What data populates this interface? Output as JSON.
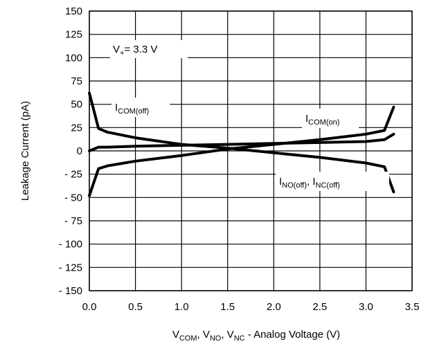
{
  "chart_data": {
    "type": "line",
    "title": "",
    "xlabel_parts": [
      {
        "text": "V"
      },
      {
        "text": "COM",
        "sub": true
      },
      {
        "text": ", V"
      },
      {
        "text": "NO",
        "sub": true
      },
      {
        "text": ", V"
      },
      {
        "text": "NC",
        "sub": true
      },
      {
        "text": " -  Analog Voltage (V)"
      }
    ],
    "ylabel": "Leakage Current  (pA)",
    "xlim": [
      0,
      3.5
    ],
    "ylim": [
      -150,
      150
    ],
    "grid": true,
    "xticks": [
      0,
      0.5,
      1.0,
      1.5,
      2.0,
      2.5,
      3.0,
      3.5
    ],
    "xtick_labels": [
      "0.0",
      "0.5",
      "1.0",
      "1.5",
      "2.0",
      "2.5",
      "3.0",
      "3.5"
    ],
    "yticks": [
      150,
      125,
      100,
      75,
      50,
      25,
      0,
      -25,
      -50,
      -75,
      -100,
      -125,
      -150
    ],
    "ytick_labels": [
      "150",
      "125",
      "100",
      "75",
      "50",
      "25",
      "0",
      "- 25",
      "- 50",
      "- 75",
      "- 100",
      "- 125",
      "- 150"
    ],
    "series": [
      {
        "id": "icom-off",
        "x": [
          0.0,
          0.1,
          0.2,
          0.5,
          1.0,
          1.5,
          2.0,
          2.5,
          3.0,
          3.2,
          3.3
        ],
        "y": [
          62,
          24,
          20,
          14,
          7,
          3,
          -2,
          -7,
          -13,
          -17,
          -44
        ]
      },
      {
        "id": "icom-on",
        "x": [
          0.0,
          0.1,
          0.2,
          0.5,
          1.0,
          1.5,
          2.0,
          2.5,
          3.0,
          3.2,
          3.3
        ],
        "y": [
          -48,
          -19,
          -16,
          -11,
          -5,
          2,
          7,
          12,
          18,
          22,
          47
        ]
      },
      {
        "id": "ino-off",
        "x": [
          0.0,
          0.1,
          0.2,
          0.5,
          1.0,
          1.5,
          2.0,
          2.5,
          3.0,
          3.2,
          3.3
        ],
        "y": [
          0,
          4,
          4,
          5,
          6,
          7,
          8,
          9,
          10,
          12,
          18
        ]
      }
    ],
    "annotations": [
      {
        "id": "supply",
        "parts": [
          {
            "text": "V"
          },
          {
            "text": "+",
            "sub": true
          },
          {
            "text": "= 3.3 V"
          }
        ]
      },
      {
        "id": "icom-off-label",
        "parts": [
          {
            "text": "I"
          },
          {
            "text": "COM(off)",
            "sub": true
          }
        ]
      },
      {
        "id": "icom-on-label",
        "parts": [
          {
            "text": "I"
          },
          {
            "text": "COM(on)",
            "sub": true
          }
        ]
      },
      {
        "id": "ino-label",
        "parts": [
          {
            "text": "I"
          },
          {
            "text": "NO(off)",
            "sub": true
          },
          {
            "text": ", I"
          },
          {
            "text": "NC(off)",
            "sub": true
          }
        ]
      }
    ]
  }
}
